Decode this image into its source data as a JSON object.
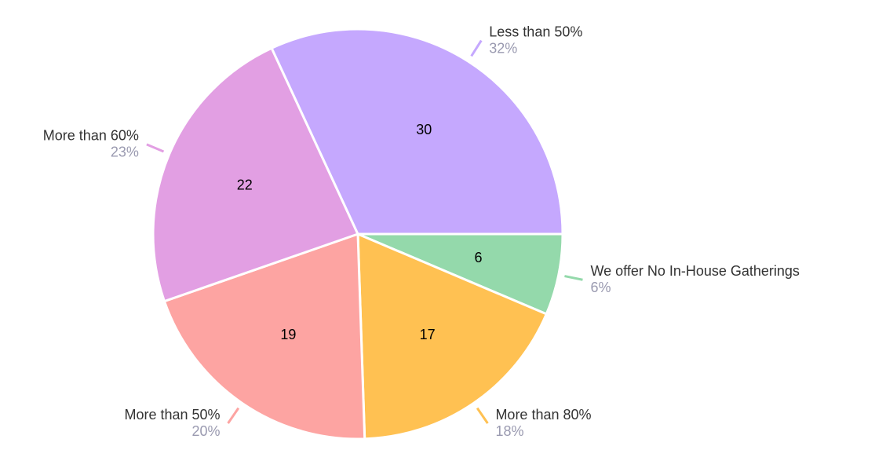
{
  "chart_data": {
    "type": "pie",
    "categories": [
      "We offer No In-House Gatherings",
      "More than 80%",
      "More than 50%",
      "More than 60%",
      "Less than 50%"
    ],
    "values": [
      6,
      17,
      19,
      22,
      30
    ],
    "percent_labels": [
      "6%",
      "18%",
      "20%",
      "23%",
      "32%"
    ],
    "colors": [
      "#94d9ab",
      "#ffc152",
      "#fda4a2",
      "#e29fe3",
      "#c5a8fe"
    ]
  }
}
